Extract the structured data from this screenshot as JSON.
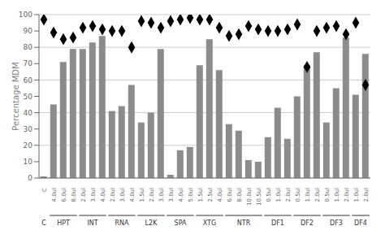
{
  "chart_data": {
    "type": "bar",
    "ylabel": "Percentage MDM",
    "categories": [
      "C",
      "4.0ul",
      "6.0ul",
      "8.0ul",
      "2.0ul",
      "3.0ul",
      "4.0ul",
      "2.0ul",
      "3.0ul",
      "4.0ul",
      "1.5ul",
      "2.0ul",
      "3.0ul",
      "3.0ul",
      "4.0ul",
      "5.0ul",
      "1.5ul",
      "2.5ul",
      "4.0ul",
      "6.0ul",
      "8.0ul",
      "10.0ul",
      "10.5ul",
      "0.5ul",
      "1.0ul",
      "2.0ul",
      "0.5ul",
      "1.0ul",
      "2.0ul",
      "0.5ul",
      "1.0ul",
      "2.0ul",
      "1.0ul",
      "2.0ul"
    ],
    "groups": [
      "C",
      "HPT",
      "HPT",
      "HPT",
      "INT",
      "INT",
      "INT",
      "RNA",
      "RNA",
      "RNA",
      "L2K",
      "L2K",
      "L2K",
      "SPA",
      "SPA",
      "SPA",
      "XTG",
      "XTG",
      "XTG",
      "NTR",
      "NTR",
      "NTR",
      "NTR",
      "DF1",
      "DF1",
      "DF1",
      "DF2",
      "DF2",
      "DF2",
      "DF3",
      "DF3",
      "DF3",
      "DF4",
      "DF4"
    ],
    "series": [
      {
        "type": "bar",
        "color": "#8C8C8C",
        "values": [
          1,
          45,
          71,
          79,
          79,
          83,
          87,
          41,
          44,
          57,
          34,
          40,
          79,
          2,
          17,
          19,
          69,
          85,
          66,
          33,
          29,
          11,
          10,
          25,
          43,
          24,
          50,
          69,
          77,
          34,
          55,
          86,
          51,
          76
        ]
      },
      {
        "type": "scatter",
        "marker": "diamond",
        "color": "#000000",
        "values": [
          97,
          89,
          85,
          86,
          92,
          93,
          91,
          90,
          90,
          80,
          96,
          95,
          92,
          96,
          97,
          98,
          97,
          97,
          92,
          87,
          88,
          93,
          91,
          90,
          90,
          91,
          94,
          68,
          90,
          92,
          93,
          88,
          95,
          57
        ]
      }
    ],
    "ylim": [
      0,
      100
    ],
    "yticks": [
      0,
      10,
      20,
      30,
      40,
      50,
      60,
      70,
      80,
      90,
      100
    ],
    "grid": true
  }
}
